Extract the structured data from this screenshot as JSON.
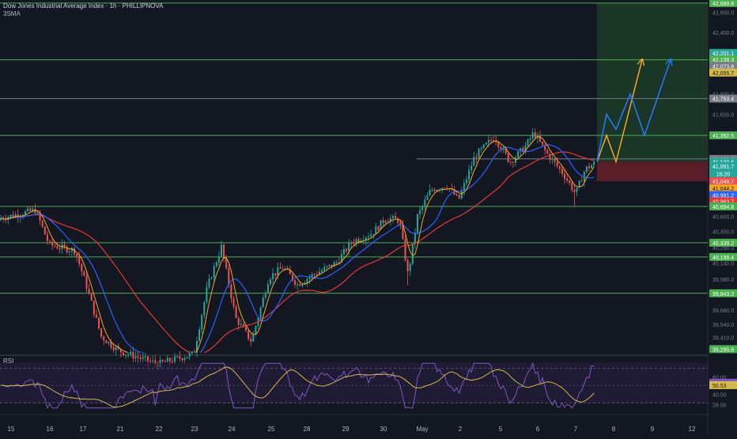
{
  "header": {
    "title": "Dow Jones Industrial Average Index · 1h · PHILLIPNOVA",
    "indicator": "3SMA"
  },
  "rsi_label": "RSI",
  "colors": {
    "background": "#131722",
    "up": "#26a69a",
    "down": "#ef5350",
    "level_line": "#4caf50",
    "grey_line": "#787b86",
    "sma_fast": "#f5a623",
    "sma_mid": "#2962ff",
    "sma_slow": "#e53935",
    "target_zone": "#1b3a27",
    "stop_zone": "#5e1f2a",
    "arrow_orange": "#f5a623",
    "arrow_blue": "#2979ff",
    "rsi_line": "#7e57c2",
    "rsi_ma": "#d4b94a"
  },
  "chart_data": {
    "type": "candlestick",
    "ylim": [
      39260,
      42720
    ],
    "x_ticks": [
      "15",
      "16",
      "17",
      "21",
      "22",
      "23",
      "24",
      "25",
      "28",
      "29",
      "30",
      "May",
      "2",
      "5",
      "6",
      "7",
      "8",
      "9",
      "12"
    ],
    "y_ticks": [
      "42,600.0",
      "42,400.0",
      "42,000.0",
      "41,800.0",
      "41,600.0",
      "40,600.0",
      "40,450.0",
      "40,290.0",
      "40,140.0",
      "39,980.0",
      "39,830.0",
      "39,680.0",
      "39,540.0",
      "39,410.0"
    ],
    "horizontal_levels": [
      {
        "value": 42689.8,
        "label": "42,689.8",
        "color": "#4caf50"
      },
      {
        "value": 42133.6,
        "label": "42,133.6",
        "color": "#4caf50"
      },
      {
        "value": 41753.4,
        "label": "41,753.4",
        "color": "#787b86"
      },
      {
        "value": 41392.5,
        "label": "41,392.5",
        "color": "#4caf50"
      },
      {
        "value": 40694.8,
        "label": "40,694.8",
        "color": "#4caf50"
      },
      {
        "value": 40339.2,
        "label": "40,339.2",
        "color": "#4caf50"
      },
      {
        "value": 40199.4,
        "label": "40,199.4",
        "color": "#4caf50"
      },
      {
        "value": 39843.3,
        "label": "39,843.3",
        "color": "#4caf50"
      }
    ],
    "price_labels": [
      {
        "value": 42689.8,
        "label": "42,689.8",
        "bg": "#4caf50",
        "fg": "#ffffff"
      },
      {
        "value": 42201.1,
        "label": "42,201.1",
        "bg": "#26a69a",
        "fg": "#ffffff"
      },
      {
        "value": 42138.3,
        "label": "42,138.3",
        "bg": "#4caf50",
        "fg": "#ffffff"
      },
      {
        "value": 42073.0,
        "label": "42,073.8",
        "bg": "#787b86",
        "fg": "#ffffff"
      },
      {
        "value": 42008.0,
        "label": "42,055.7",
        "bg": "#d4b94a",
        "fg": "#131722"
      },
      {
        "value": 41753.4,
        "label": "41,753.4",
        "bg": "#787b86",
        "fg": "#ffffff"
      },
      {
        "value": 41392.5,
        "label": "41,392.5",
        "bg": "#4caf50",
        "fg": "#ffffff"
      },
      {
        "value": 41161.8,
        "label": "41,161.8",
        "bg": "#787b86",
        "fg": "#ffffff"
      },
      {
        "value": 41133.6,
        "label": "41,133.6",
        "bg": "#26a69a",
        "fg": "#ffffff"
      },
      {
        "value": 41091.7,
        "label": "41,091.7",
        "bg": "#26a69a",
        "fg": "#ffffff"
      },
      {
        "value": 41019.0,
        "label": "16:20",
        "bg": "#26a69a",
        "fg": "#ffffff"
      },
      {
        "value": 40942.0,
        "label": "41,049.7",
        "bg": "#ef5350",
        "fg": "#ffffff"
      },
      {
        "value": 40872.0,
        "label": "41,044.2",
        "bg": "#f5a623",
        "fg": "#131722"
      },
      {
        "value": 40808.0,
        "label": "40,991.2",
        "bg": "#2962ff",
        "fg": "#ffffff"
      },
      {
        "value": 40746.0,
        "label": "40,963.7",
        "bg": "#e53935",
        "fg": "#ffffff"
      },
      {
        "value": 40694.8,
        "label": "40,694.8",
        "bg": "#4caf50",
        "fg": "#ffffff"
      },
      {
        "value": 40339.2,
        "label": "40,339.2",
        "bg": "#4caf50",
        "fg": "#ffffff"
      },
      {
        "value": 40199.4,
        "label": "40,199.4",
        "bg": "#4caf50",
        "fg": "#ffffff"
      },
      {
        "value": 39843.3,
        "label": "39,843.3",
        "bg": "#4caf50",
        "fg": "#ffffff"
      },
      {
        "value": 39295.6,
        "label": "39,295.6",
        "bg": "#4caf50",
        "fg": "#ffffff"
      }
    ],
    "rsi_ticks": [
      "60.00",
      "53.35",
      "50.53",
      "40.00",
      "28.00"
    ],
    "rsi_levels": [
      70,
      30
    ],
    "trade_setup": {
      "entry": 41133.6,
      "target": 42689.8,
      "stop": 40942.0,
      "projections": [
        {
          "name": "orange",
          "points": [
            [
              0,
              41133.6
            ],
            [
              1,
              41392.5
            ],
            [
              2,
              41133.6
            ],
            [
              3,
              42133.6
            ]
          ]
        },
        {
          "name": "blue",
          "points": [
            [
              0,
              41133.6
            ],
            [
              1,
              41600
            ],
            [
              2,
              41450
            ],
            [
              3,
              41800
            ],
            [
              4,
              41392.5
            ],
            [
              5,
              42133.6
            ]
          ]
        }
      ]
    }
  }
}
